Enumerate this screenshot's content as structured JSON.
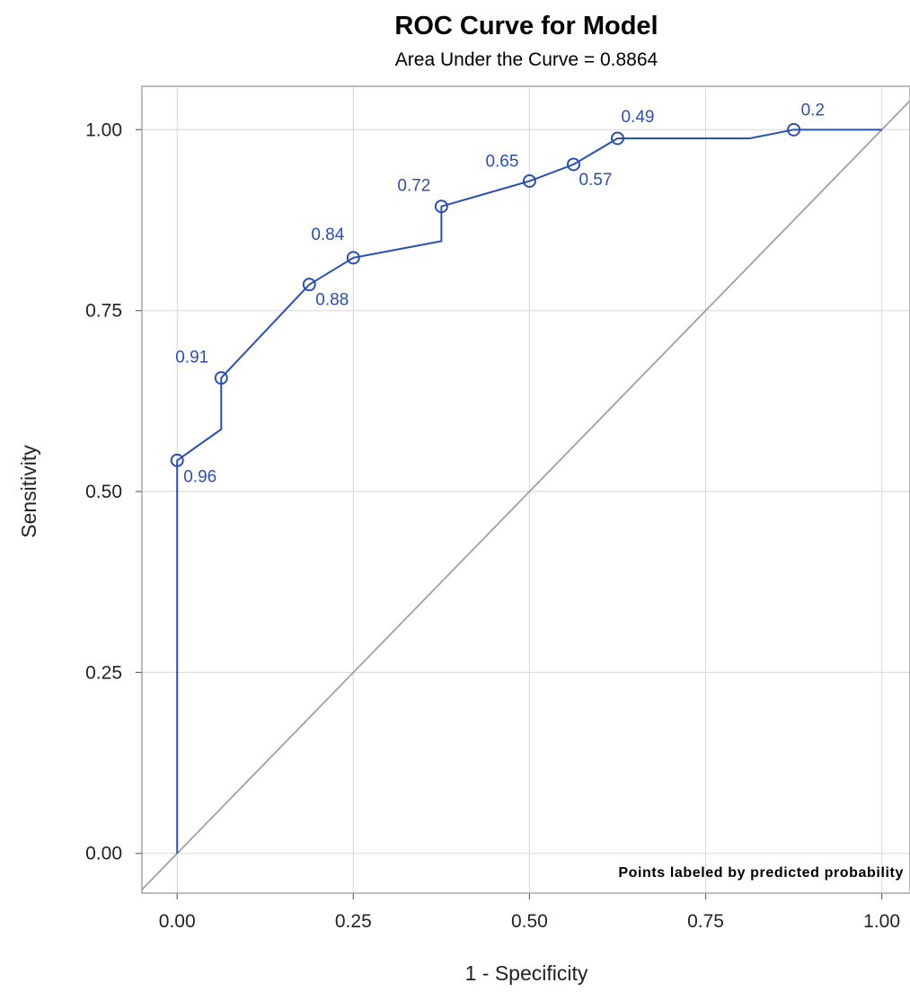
{
  "chart_data": {
    "type": "line",
    "title": "ROC Curve for Model",
    "subtitle": "Area Under the Curve = 0.8864",
    "xlabel": "1 - Specificity",
    "ylabel": "Sensitivity",
    "xlim": [
      -0.05,
      1.04
    ],
    "ylim": [
      -0.055,
      1.06
    ],
    "xticks": [
      "0.00",
      "0.25",
      "0.50",
      "0.75",
      "1.00"
    ],
    "yticks": [
      "0.00",
      "0.25",
      "0.50",
      "0.75",
      "1.00"
    ],
    "grid": true,
    "note": "Points labeled by predicted probability",
    "series": [
      {
        "name": "",
        "x": [
          0.0,
          0.0,
          0.0625,
          0.0625,
          0.1875,
          0.25,
          0.375,
          0.375,
          0.5,
          0.5625,
          0.625,
          0.8125,
          0.875,
          1.0
        ],
        "y": [
          0.0,
          0.543,
          0.586,
          0.657,
          0.786,
          0.823,
          0.846,
          0.894,
          0.929,
          0.952,
          0.988,
          0.988,
          1.0,
          1.0
        ]
      },
      {
        "name": "",
        "x": [
          -0.05,
          1.04
        ],
        "y": [
          -0.05,
          1.04
        ]
      }
    ],
    "labeled_points": [
      {
        "label": "0.96",
        "x": 0.0,
        "y": 0.543
      },
      {
        "label": "0.91",
        "x": 0.0625,
        "y": 0.657
      },
      {
        "label": "0.88",
        "x": 0.1875,
        "y": 0.786
      },
      {
        "label": "0.84",
        "x": 0.25,
        "y": 0.823
      },
      {
        "label": "0.72",
        "x": 0.375,
        "y": 0.894
      },
      {
        "label": "0.65",
        "x": 0.5,
        "y": 0.929
      },
      {
        "label": "0.57",
        "x": 0.5625,
        "y": 0.952
      },
      {
        "label": "0.49",
        "x": 0.625,
        "y": 0.988
      },
      {
        "label": "0.2",
        "x": 0.875,
        "y": 1.0
      }
    ],
    "colors": {
      "curve": "#2a4fb5",
      "reference": "#a0a0a0",
      "grid": "#dcdcdc",
      "frame": "#999999"
    }
  }
}
